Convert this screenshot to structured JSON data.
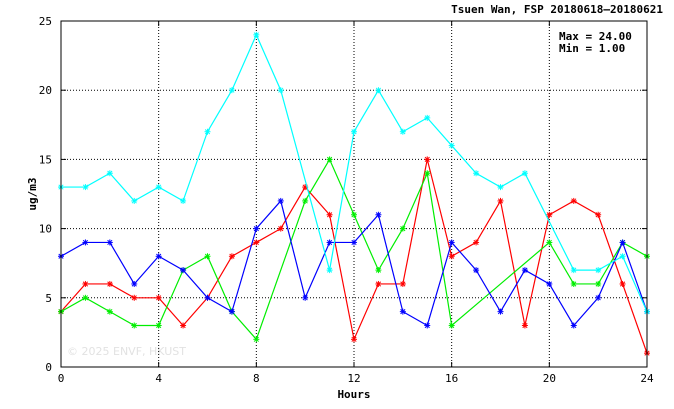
{
  "chart_data": {
    "type": "line",
    "title": "Tsuen Wan, FSP 20180618–20180621",
    "xlabel": "Hours",
    "ylabel": "ug/m3",
    "xlim": [
      0,
      24
    ],
    "ylim": [
      0,
      25
    ],
    "xticks": [
      0,
      4,
      8,
      12,
      16,
      20,
      24
    ],
    "yticks": [
      0,
      5,
      10,
      15,
      20,
      25
    ],
    "grid": true,
    "stats": {
      "max_label": "Max = 24.00",
      "min_label": "Min =  1.00"
    },
    "watermark": "© 2025 ENVF, HKUST",
    "x": [
      0,
      1,
      2,
      3,
      4,
      5,
      6,
      7,
      8,
      9,
      10,
      11,
      12,
      13,
      14,
      15,
      16,
      17,
      18,
      19,
      20,
      21,
      22,
      23,
      24
    ],
    "series": [
      {
        "color": "#ff0000",
        "values": [
          4,
          6,
          6,
          5,
          5,
          3,
          5,
          8,
          9,
          10,
          13,
          11,
          2,
          6,
          6,
          15,
          8,
          9,
          12,
          3,
          11,
          12,
          11,
          6,
          1
        ]
      },
      {
        "color": "#00ee00",
        "values": [
          4,
          5,
          4,
          3,
          3,
          7,
          8,
          4,
          2,
          null,
          12,
          15,
          11,
          7,
          10,
          14,
          3,
          null,
          null,
          null,
          9,
          6,
          6,
          9,
          8
        ]
      },
      {
        "color": "#0000ff",
        "values": [
          8,
          9,
          9,
          6,
          8,
          7,
          5,
          4,
          10,
          12,
          5,
          9,
          9,
          11,
          4,
          3,
          9,
          7,
          4,
          7,
          6,
          3,
          5,
          9,
          4
        ]
      },
      {
        "color": "#00ffff",
        "values": [
          13,
          13,
          14,
          12,
          13,
          12,
          17,
          20,
          24,
          20,
          null,
          7,
          17,
          20,
          17,
          18,
          16,
          14,
          13,
          14,
          null,
          7,
          7,
          8,
          4
        ]
      }
    ]
  }
}
